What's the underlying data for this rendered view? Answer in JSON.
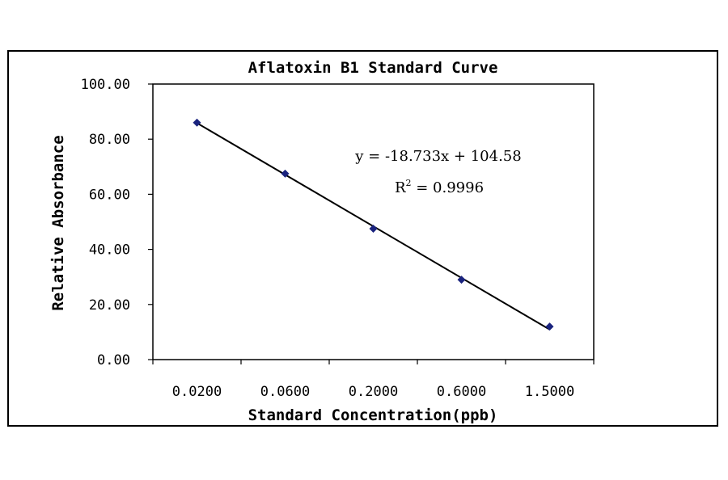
{
  "chart_data": {
    "type": "scatter",
    "title": "Aflatoxin B1 Standard Curve",
    "xlabel": "Standard Concentration(ppb)",
    "ylabel": "Relative Absorbance",
    "x_axis_type": "category",
    "categories": [
      "0.0200",
      "0.0600",
      "0.2000",
      "0.6000",
      "1.5000"
    ],
    "ylim": [
      0,
      100
    ],
    "y_ticks": [
      "0.00",
      "20.00",
      "40.00",
      "60.00",
      "80.00",
      "100.00"
    ],
    "grid": false,
    "legend": "none",
    "series": [
      {
        "x": [
          1,
          2,
          3,
          4,
          5
        ],
        "values": [
          86.0,
          67.5,
          47.5,
          29.0,
          12.0
        ],
        "marker_color": "#1a237e"
      }
    ],
    "trendline": {
      "type": "linear",
      "slope": -18.733,
      "intercept": 104.58,
      "color": "#000000"
    },
    "annotations": {
      "equation": "y = -18.733x + 104.58",
      "r2_prefix": "R",
      "r2_sup": "2",
      "r2_value": " = 0.9996"
    }
  }
}
